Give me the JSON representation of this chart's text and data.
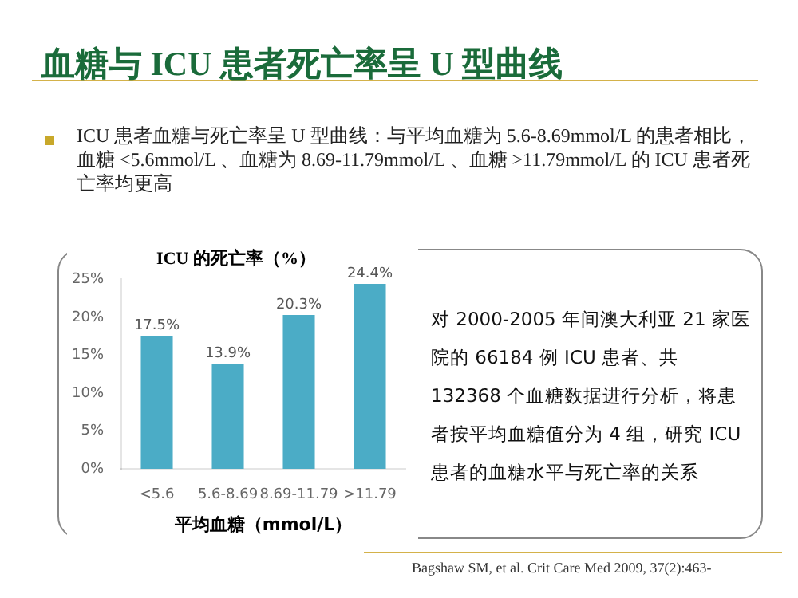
{
  "chart_data": {
    "type": "bar",
    "title": "血糖与 ICU 患者死亡率呈 U 型曲线",
    "ylabel": "ICU 的死亡率（%）",
    "xlabel": "平均血糖（mmol/L）",
    "categories": [
      "<5.6",
      "5.6-8.69",
      "8.69-11.79",
      ">11.79"
    ],
    "values": [
      17.5,
      13.9,
      20.3,
      24.4
    ],
    "color": "#4bacc6",
    "value_labels": [
      "17.5%",
      "13.9%",
      "20.3%",
      "24.4%"
    ],
    "ylim": [
      0,
      25
    ],
    "yticks": [
      {
        "value": 0,
        "label": "0%"
      },
      {
        "value": 5,
        "label": "5%"
      },
      {
        "value": 10,
        "label": "10%"
      },
      {
        "value": 15,
        "label": "15%"
      },
      {
        "value": 20,
        "label": "20%"
      },
      {
        "value": 25,
        "label": "25%"
      }
    ],
    "grid": false,
    "legend": false,
    "annotations": [
      "ICU 患者血糖与死亡率呈 U 型曲线：与平均血糖为 5.6-8.69mmol/L 的患者相比，血糖 <5.6mmol/L 、血糖为 8.69-11.79mmol/L 、血糖 >11.79mmol/L 的 ICU 患者死亡率均更高",
      "对 2000-2005 年间澳大利亚 21 家医院的 66184 例 ICU 患者、共 132368 个血糖数据进行分析，将患者按平均血糖值分为 4 组，研究 ICU 患者的血糖水平与死亡率的关系",
      "Bagshaw SM, et al. Crit Care Med 2009, 37(2):463-"
    ]
  }
}
